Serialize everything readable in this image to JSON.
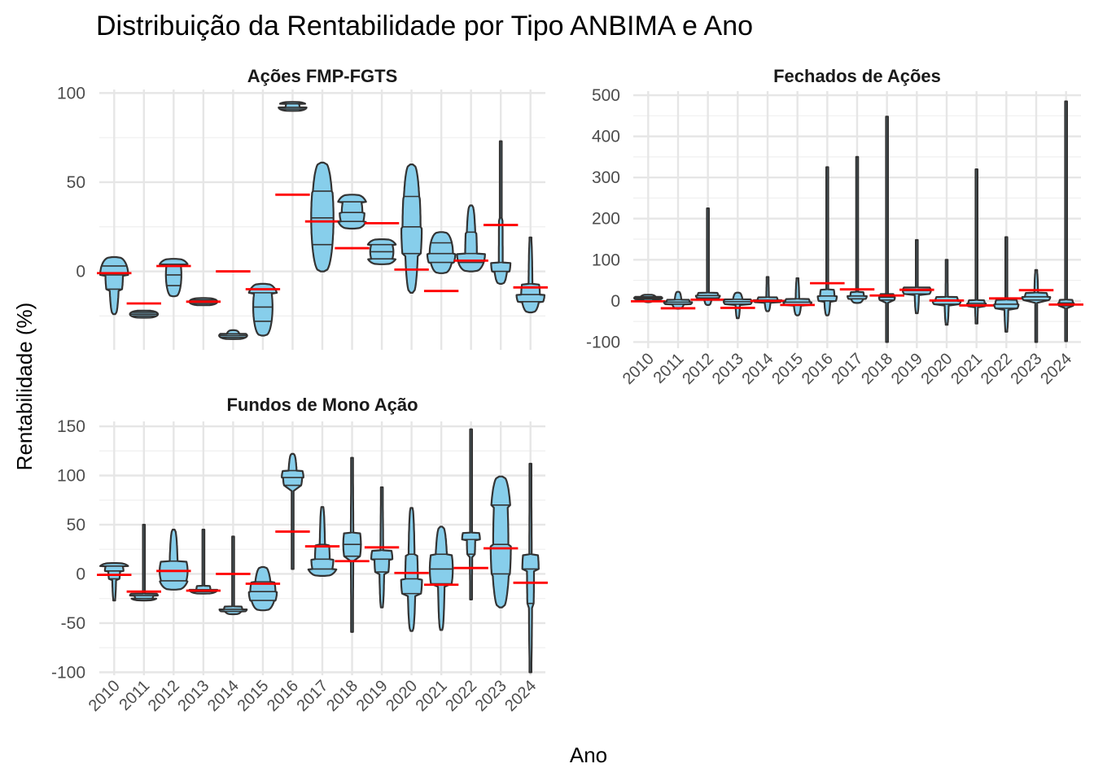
{
  "chart_data": {
    "type": "violin",
    "title": "Distribuição da Rentabilidade por Tipo ANBIMA e Ano",
    "xlabel": "Ano",
    "ylabel": "Rentabilidade (%)",
    "years": [
      "2010",
      "2011",
      "2012",
      "2013",
      "2014",
      "2015",
      "2016",
      "2017",
      "2018",
      "2019",
      "2020",
      "2021",
      "2022",
      "2023",
      "2024"
    ],
    "colors": {
      "violin_fill": "#87ceeb",
      "violin_stroke": "#333333",
      "mean_line": "#ff0000",
      "grid": "#e6e6e6"
    },
    "mean_line_values": [
      -1,
      -18,
      3,
      -17,
      0,
      -10,
      43,
      28,
      13,
      27,
      1,
      -11,
      6,
      26,
      -9
    ],
    "panels": [
      {
        "name": "Ações FMP-FGTS",
        "ylim": [
          -44,
          102
        ],
        "yticks": [
          0,
          50,
          100
        ],
        "distributions": [
          {
            "year": "2010",
            "min": -24,
            "q1": -10,
            "median": -2,
            "q3": 3,
            "max": 8
          },
          {
            "year": "2011",
            "min": -26,
            "q1": -25,
            "median": -24,
            "q3": -23,
            "max": -22
          },
          {
            "year": "2012",
            "min": -14,
            "q1": -8,
            "median": -2,
            "q3": 4,
            "max": 7
          },
          {
            "year": "2013",
            "min": -19,
            "q1": -18,
            "median": -17,
            "q3": -16,
            "max": -15
          },
          {
            "year": "2014",
            "min": -38,
            "q1": -37,
            "median": -36,
            "q3": -35,
            "max": -33
          },
          {
            "year": "2015",
            "min": -36,
            "q1": -28,
            "median": -20,
            "q3": -12,
            "max": -7
          },
          {
            "year": "2016",
            "min": 90,
            "q1": 91,
            "median": 92,
            "q3": 94,
            "max": 95
          },
          {
            "year": "2017",
            "min": 0,
            "q1": 15,
            "median": 30,
            "q3": 45,
            "max": 61
          },
          {
            "year": "2018",
            "min": 24,
            "q1": 28,
            "median": 33,
            "q3": 39,
            "max": 43
          },
          {
            "year": "2019",
            "min": 4,
            "q1": 7,
            "median": 11,
            "q3": 15,
            "max": 18
          },
          {
            "year": "2020",
            "min": -12,
            "q1": 10,
            "median": 25,
            "q3": 42,
            "max": 60
          },
          {
            "year": "2021",
            "min": -1,
            "q1": 5,
            "median": 10,
            "q3": 16,
            "max": 22
          },
          {
            "year": "2022",
            "min": 0,
            "q1": 5,
            "median": 10,
            "q3": 22,
            "max": 37
          },
          {
            "year": "2023",
            "min": -7,
            "q1": 0,
            "median": 5,
            "q3": 30,
            "max": 73
          },
          {
            "year": "2024",
            "min": -23,
            "q1": -17,
            "median": -13,
            "q3": -7,
            "max": 19
          }
        ]
      },
      {
        "name": "Fechados de Ações",
        "ylim": [
          -115,
          510
        ],
        "yticks": [
          -100,
          0,
          100,
          200,
          300,
          400,
          500
        ],
        "distributions": [
          {
            "year": "2010",
            "min": -3,
            "q1": 4,
            "median": 7,
            "q3": 10,
            "max": 15
          },
          {
            "year": "2011",
            "min": -19,
            "q1": -8,
            "median": -3,
            "q3": 3,
            "max": 22
          },
          {
            "year": "2012",
            "min": -10,
            "q1": 7,
            "median": 13,
            "q3": 20,
            "max": 225
          },
          {
            "year": "2013",
            "min": -42,
            "q1": -8,
            "median": -2,
            "q3": 4,
            "max": 20
          },
          {
            "year": "2014",
            "min": -25,
            "q1": -3,
            "median": 2,
            "q3": 9,
            "max": 58
          },
          {
            "year": "2015",
            "min": -35,
            "q1": -10,
            "median": -3,
            "q3": 5,
            "max": 55
          },
          {
            "year": "2016",
            "min": -35,
            "q1": 0,
            "median": 12,
            "q3": 28,
            "max": 325
          },
          {
            "year": "2017",
            "min": -5,
            "q1": 5,
            "median": 12,
            "q3": 22,
            "max": 350
          },
          {
            "year": "2018",
            "min": -100,
            "q1": 2,
            "median": 9,
            "q3": 17,
            "max": 448
          },
          {
            "year": "2019",
            "min": -30,
            "q1": 17,
            "median": 25,
            "q3": 33,
            "max": 148
          },
          {
            "year": "2020",
            "min": -58,
            "q1": -8,
            "median": 0,
            "q3": 10,
            "max": 100
          },
          {
            "year": "2021",
            "min": -55,
            "q1": -13,
            "median": -6,
            "q3": 2,
            "max": 320
          },
          {
            "year": "2022",
            "min": -75,
            "q1": -18,
            "median": -8,
            "q3": 3,
            "max": 155
          },
          {
            "year": "2023",
            "min": -100,
            "q1": 2,
            "median": 10,
            "q3": 20,
            "max": 75
          },
          {
            "year": "2024",
            "min": -98,
            "q1": -12,
            "median": -5,
            "q3": 3,
            "max": 485
          }
        ]
      },
      {
        "name": "Fundos de Mono Ação",
        "ylim": [
          -103,
          155
        ],
        "yticks": [
          -100,
          -50,
          0,
          50,
          100,
          150
        ],
        "distributions": [
          {
            "year": "2010",
            "min": -27,
            "q1": -5,
            "median": 3,
            "q3": 8,
            "max": 11
          },
          {
            "year": "2011",
            "min": -27,
            "q1": -25,
            "median": -22,
            "q3": -20,
            "max": 50
          },
          {
            "year": "2012",
            "min": -16,
            "q1": -7,
            "median": 3,
            "q3": 13,
            "max": 45
          },
          {
            "year": "2013",
            "min": -20,
            "q1": -18,
            "median": -16,
            "q3": -12,
            "max": 45
          },
          {
            "year": "2014",
            "min": -41,
            "q1": -38,
            "median": -36,
            "q3": -33,
            "max": 38
          },
          {
            "year": "2015",
            "min": -37,
            "q1": -27,
            "median": -18,
            "q3": -8,
            "max": 7
          },
          {
            "year": "2016",
            "min": 5,
            "q1": 90,
            "median": 98,
            "q3": 105,
            "max": 122
          },
          {
            "year": "2017",
            "min": -2,
            "q1": 5,
            "median": 15,
            "q3": 30,
            "max": 68
          },
          {
            "year": "2018",
            "min": -59,
            "q1": 18,
            "median": 30,
            "q3": 42,
            "max": 118
          },
          {
            "year": "2019",
            "min": -34,
            "q1": 2,
            "median": 15,
            "q3": 24,
            "max": 88
          },
          {
            "year": "2020",
            "min": -58,
            "q1": -20,
            "median": -5,
            "q3": 20,
            "max": 67
          },
          {
            "year": "2021",
            "min": -57,
            "q1": -10,
            "median": 5,
            "q3": 20,
            "max": 48
          },
          {
            "year": "2022",
            "min": -26,
            "q1": 20,
            "median": 35,
            "q3": 42,
            "max": 147
          },
          {
            "year": "2023",
            "min": -34,
            "q1": 0,
            "median": 30,
            "q3": 70,
            "max": 99
          },
          {
            "year": "2024",
            "min": -100,
            "q1": -30,
            "median": 5,
            "q3": 20,
            "max": 112
          }
        ]
      }
    ]
  }
}
